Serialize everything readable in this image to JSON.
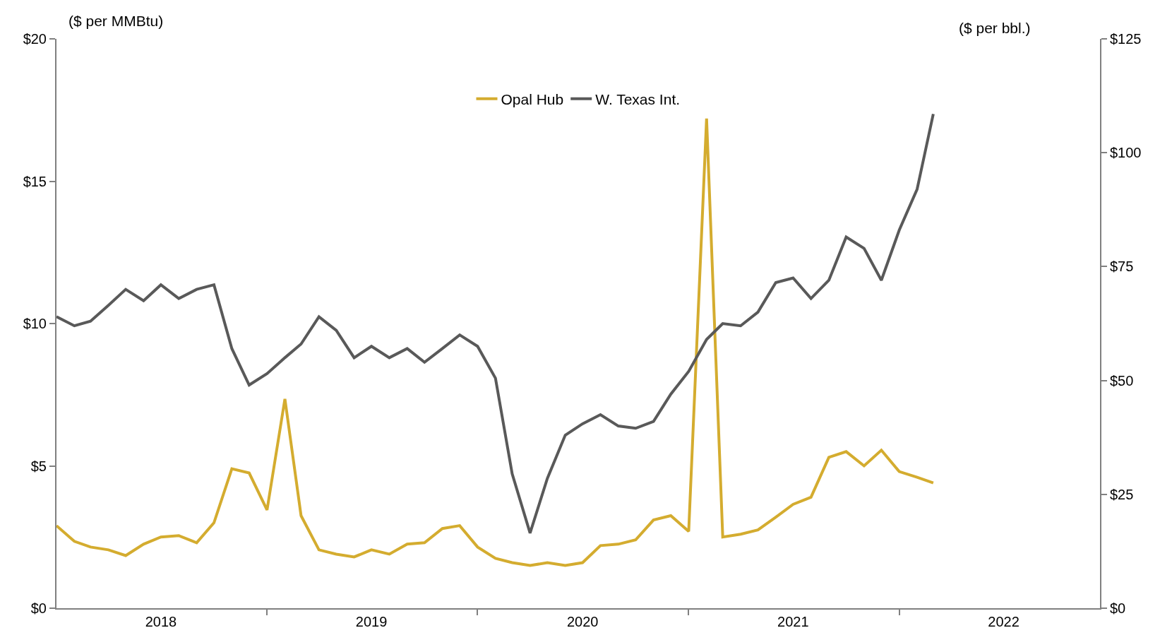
{
  "chart_data": {
    "type": "line",
    "x": [
      "2018-01",
      "2018-02",
      "2018-03",
      "2018-04",
      "2018-05",
      "2018-06",
      "2018-07",
      "2018-08",
      "2018-09",
      "2018-10",
      "2018-11",
      "2018-12",
      "2019-01",
      "2019-02",
      "2019-03",
      "2019-04",
      "2019-05",
      "2019-06",
      "2019-07",
      "2019-08",
      "2019-09",
      "2019-10",
      "2019-11",
      "2019-12",
      "2020-01",
      "2020-02",
      "2020-03",
      "2020-04",
      "2020-05",
      "2020-06",
      "2020-07",
      "2020-08",
      "2020-09",
      "2020-10",
      "2020-11",
      "2020-12",
      "2021-01",
      "2021-02",
      "2021-03",
      "2021-04",
      "2021-05",
      "2021-06",
      "2021-07",
      "2021-08",
      "2021-09",
      "2021-10",
      "2021-11",
      "2021-12",
      "2022-01",
      "2022-02",
      "2022-03"
    ],
    "series": [
      {
        "name": "Opal Hub",
        "color": "#d4ac2f",
        "values": [
          2.9,
          2.35,
          2.15,
          2.05,
          1.85,
          2.25,
          2.5,
          2.55,
          2.3,
          3.0,
          4.9,
          4.75,
          3.45,
          7.35,
          3.25,
          2.05,
          1.9,
          1.8,
          2.05,
          1.9,
          2.25,
          2.3,
          2.8,
          2.9,
          2.15,
          1.75,
          1.6,
          1.5,
          1.6,
          1.5,
          1.6,
          2.2,
          2.25,
          2.4,
          3.1,
          3.25,
          2.7,
          17.2,
          2.5,
          2.6,
          2.75,
          3.2,
          3.65,
          3.9,
          5.3,
          5.5,
          5.0,
          5.55,
          4.8,
          4.6,
          4.4
        ]
      },
      {
        "name": "W. Texas Int.",
        "color": "#595959",
        "axis": "y2",
        "values": [
          64,
          62,
          63,
          66.5,
          70,
          67.5,
          71,
          68,
          70,
          71,
          57,
          49,
          51.5,
          55,
          58,
          64,
          61,
          55,
          57.5,
          55,
          57,
          54,
          57,
          60,
          57.5,
          50.5,
          29.5,
          16.5,
          28.5,
          38,
          40.5,
          42.5,
          40,
          39.5,
          41,
          47,
          52,
          59,
          62.5,
          62,
          65,
          71.5,
          72.5,
          68,
          72,
          81.5,
          79,
          72,
          83,
          92,
          108.5
        ]
      }
    ],
    "ylabel": "($ per MMBtu)",
    "y2label": "($ per bbl.)",
    "xlim": [
      "2018-01-01",
      "2022-12-15"
    ],
    "xticks": [
      {
        "value": "2018-07-01",
        "label": "2018"
      },
      {
        "value": "2019-07-01",
        "label": "2019"
      },
      {
        "value": "2020-07-01",
        "label": "2020"
      },
      {
        "value": "2021-07-01",
        "label": "2021"
      },
      {
        "value": "2022-07-01",
        "label": "2022"
      },
      {
        "value": "2019-01-01",
        "label": null
      },
      {
        "value": "2020-01-01",
        "label": null
      },
      {
        "value": "2021-01-01",
        "label": null
      },
      {
        "value": "2022-01-01",
        "label": null
      }
    ],
    "ylim": [
      0,
      20
    ],
    "yticks": [
      {
        "value": 0,
        "label": "$0"
      },
      {
        "value": 5,
        "label": "$5"
      },
      {
        "value": 10,
        "label": "$10"
      },
      {
        "value": 15,
        "label": "$15"
      },
      {
        "value": 20,
        "label": "$20"
      }
    ],
    "y2lim": [
      0,
      125
    ],
    "y2ticks": [
      {
        "value": 0,
        "label": "$0"
      },
      {
        "value": 25,
        "label": "$25"
      },
      {
        "value": 50,
        "label": "$50"
      },
      {
        "value": 75,
        "label": "$75"
      },
      {
        "value": 100,
        "label": "$100"
      },
      {
        "value": 125,
        "label": "$125"
      }
    ],
    "legend": "top",
    "marker": "none",
    "line_style": "solid"
  }
}
